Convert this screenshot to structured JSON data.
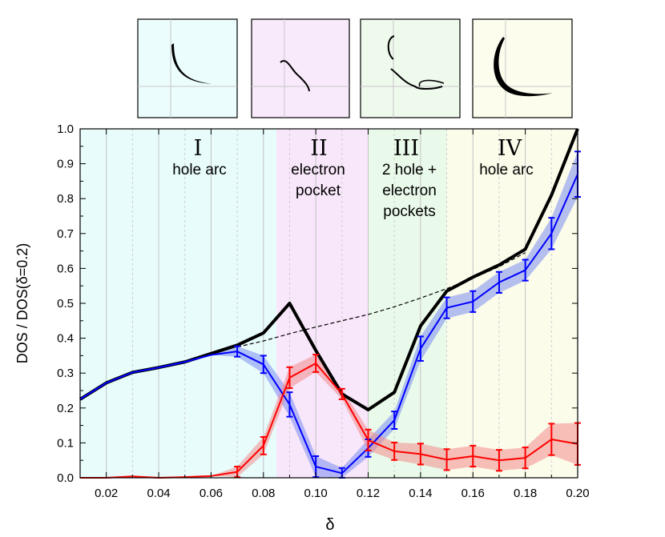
{
  "chart_data": {
    "type": "line",
    "xlabel": "δ",
    "ylabel": "DOS / DOS(δ=0.2)",
    "xlim": [
      0.01,
      0.2
    ],
    "ylim": [
      0.0,
      1.0
    ],
    "x_ticks": [
      "0.02",
      "0.04",
      "0.06",
      "0.08",
      "0.10",
      "0.12",
      "0.14",
      "0.16",
      "0.18",
      "0.20"
    ],
    "y_ticks": [
      "0.0",
      "0.1",
      "0.2",
      "0.3",
      "0.4",
      "0.5",
      "0.6",
      "0.7",
      "0.8",
      "0.9",
      "1.0"
    ],
    "grid": "vertical lines (solid at major ticks, dashed at minor ticks)",
    "regions": [
      {
        "numeral": "I",
        "lines": [
          "hole arc"
        ],
        "x_range": [
          0.01,
          0.085
        ],
        "color": "#e8fcfc"
      },
      {
        "numeral": "II",
        "lines": [
          "electron",
          "pocket"
        ],
        "x_range": [
          0.085,
          0.12
        ],
        "color": "#f8e6fa"
      },
      {
        "numeral": "III",
        "lines": [
          "2 hole +",
          "electron",
          "pockets"
        ],
        "x_range": [
          0.12,
          0.15
        ],
        "color": "#eafaea"
      },
      {
        "numeral": "IV",
        "lines": [
          "hole arc"
        ],
        "x_range": [
          0.15,
          0.2
        ],
        "color": "#fcfceb"
      }
    ],
    "series": [
      {
        "color": "#000000",
        "style": "solid-thick",
        "x": [
          0.01,
          0.02,
          0.03,
          0.04,
          0.05,
          0.06,
          0.07,
          0.08,
          0.09,
          0.1,
          0.11,
          0.12,
          0.13,
          0.14,
          0.15,
          0.16,
          0.17,
          0.18,
          0.19,
          0.2
        ],
        "y": [
          0.225,
          0.272,
          0.302,
          0.316,
          0.332,
          0.356,
          0.38,
          0.415,
          0.5,
          0.365,
          0.24,
          0.195,
          0.245,
          0.435,
          0.535,
          0.575,
          0.61,
          0.655,
          0.81,
          1.0
        ]
      },
      {
        "color": "#000000",
        "style": "dashed",
        "x": [
          0.07,
          0.08,
          0.09,
          0.1,
          0.11,
          0.12,
          0.13,
          0.14,
          0.15,
          0.16,
          0.17,
          0.18
        ],
        "y": [
          0.375,
          0.392,
          0.413,
          0.432,
          0.45,
          0.468,
          0.49,
          0.515,
          0.542,
          0.572,
          0.605,
          0.645
        ]
      },
      {
        "color": "#0000ff",
        "band_color": "#7a8cf0",
        "x": [
          0.01,
          0.02,
          0.03,
          0.04,
          0.05,
          0.06,
          0.07,
          0.08,
          0.09,
          0.1,
          0.11,
          0.12,
          0.13,
          0.14,
          0.15,
          0.16,
          0.17,
          0.18,
          0.19,
          0.2
        ],
        "y": [
          0.225,
          0.272,
          0.302,
          0.316,
          0.332,
          0.352,
          0.362,
          0.325,
          0.21,
          0.032,
          0.013,
          0.085,
          0.165,
          0.37,
          0.487,
          0.505,
          0.56,
          0.595,
          0.7,
          0.87
        ],
        "err": [
          0,
          0,
          0,
          0,
          0,
          0,
          0.015,
          0.025,
          0.035,
          0.03,
          0.015,
          0.025,
          0.025,
          0.035,
          0.03,
          0.03,
          0.03,
          0.03,
          0.045,
          0.065
        ],
        "errbars_from_index": 6
      },
      {
        "color": "#ff0000",
        "band_color": "#f08a8a",
        "x": [
          0.01,
          0.02,
          0.03,
          0.04,
          0.05,
          0.06,
          0.07,
          0.08,
          0.09,
          0.1,
          0.11,
          0.12,
          0.13,
          0.14,
          0.15,
          0.16,
          0.17,
          0.18,
          0.19,
          0.2
        ],
        "y": [
          0.0,
          0.0,
          0.004,
          0.0,
          0.002,
          0.005,
          0.017,
          0.092,
          0.287,
          0.328,
          0.24,
          0.108,
          0.076,
          0.068,
          0.052,
          0.062,
          0.05,
          0.057,
          0.11,
          0.097
        ],
        "err": [
          0,
          0,
          0,
          0,
          0,
          0,
          0.015,
          0.025,
          0.03,
          0.025,
          0.015,
          0.03,
          0.025,
          0.03,
          0.03,
          0.03,
          0.03,
          0.03,
          0.045,
          0.06
        ],
        "errbars_from_index": 6
      }
    ]
  },
  "insets": [
    {
      "bg": "#ebfdfd"
    },
    {
      "bg": "#f8e9fb"
    },
    {
      "bg": "#eefaec"
    },
    {
      "bg": "#fdfded"
    }
  ]
}
